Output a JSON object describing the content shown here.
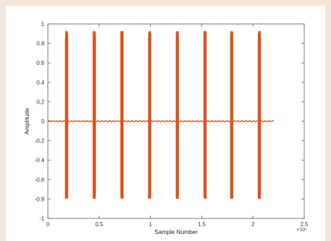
{
  "chart_data": {
    "type": "line",
    "title": "",
    "xlabel": "Sample Number",
    "ylabel": "Amplitude",
    "x_multiplier_label": "×10⁵",
    "xlim": [
      0,
      2.5
    ],
    "ylim": [
      -1,
      1
    ],
    "x_ticks": [
      0,
      0.5,
      1,
      1.5,
      2,
      2.5
    ],
    "x_tick_labels": [
      "0",
      "0.5",
      "1",
      "1.5",
      "2",
      "2.5"
    ],
    "y_ticks": [
      -1,
      -0.8,
      -0.6,
      -0.4,
      -0.2,
      0,
      0.2,
      0.4,
      0.6,
      0.8,
      1
    ],
    "y_tick_labels": [
      "-1",
      "-0.8",
      "-0.6",
      "-0.4",
      "-0.2",
      "0",
      "0.2",
      "0.4",
      "0.6",
      "0.8",
      "1"
    ],
    "grid": false,
    "color": "#d9531e",
    "signal": {
      "x_start": 0,
      "x_end": 2.2,
      "baseline": 0,
      "bursts": [
        {
          "x_start": 0.17,
          "x_end": 0.195,
          "max": 0.93,
          "min": -0.8
        },
        {
          "x_start": 0.44,
          "x_end": 0.465,
          "max": 0.93,
          "min": -0.8
        },
        {
          "x_start": 0.71,
          "x_end": 0.735,
          "max": 0.93,
          "min": -0.8
        },
        {
          "x_start": 0.98,
          "x_end": 1.005,
          "max": 0.93,
          "min": -0.8
        },
        {
          "x_start": 1.25,
          "x_end": 1.275,
          "max": 0.93,
          "min": -0.8
        },
        {
          "x_start": 1.52,
          "x_end": 1.545,
          "max": 0.93,
          "min": -0.8
        },
        {
          "x_start": 1.78,
          "x_end": 1.805,
          "max": 0.93,
          "min": -0.8
        },
        {
          "x_start": 2.05,
          "x_end": 2.075,
          "max": 0.93,
          "min": -0.8
        }
      ]
    }
  }
}
